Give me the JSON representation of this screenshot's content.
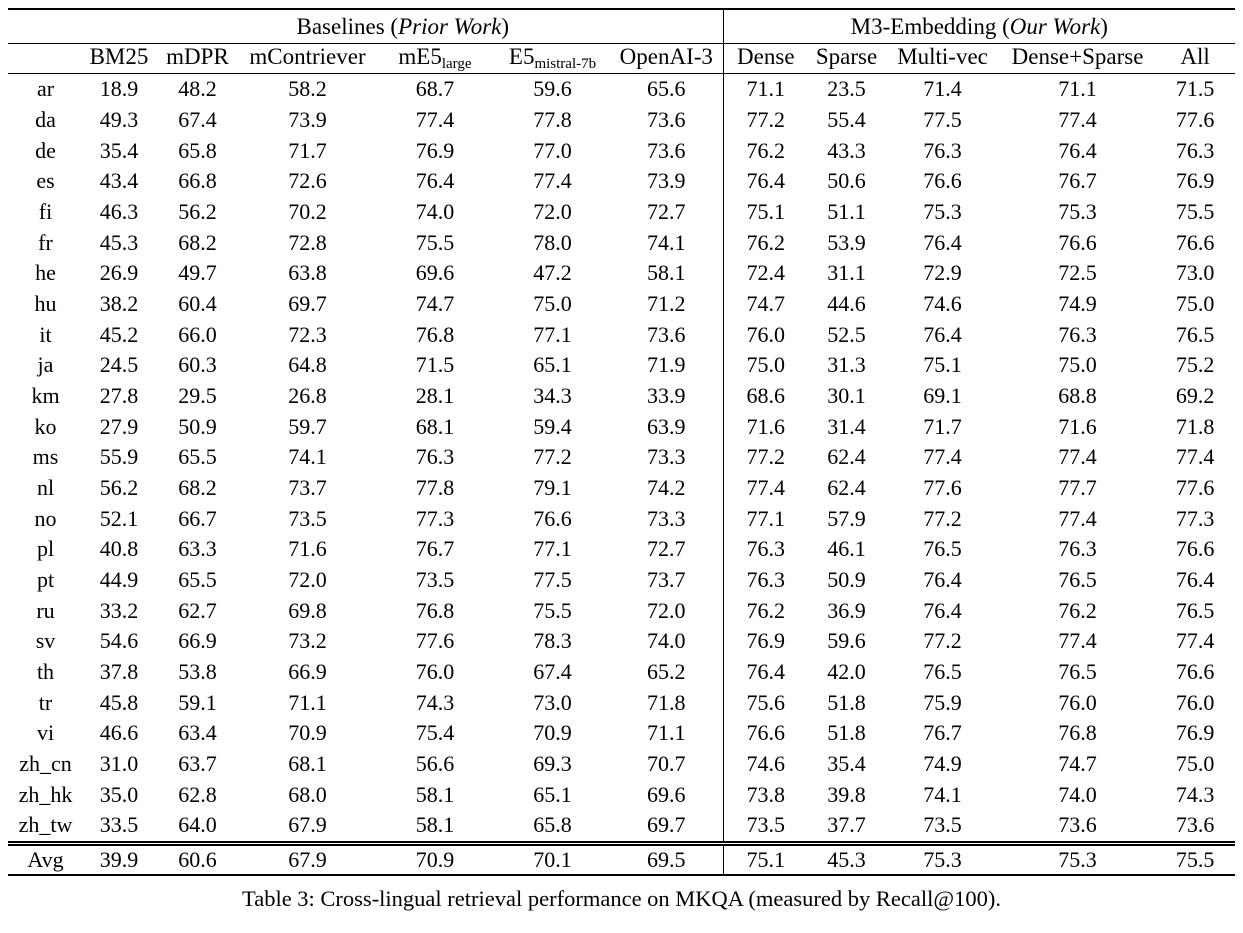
{
  "table": {
    "groups": [
      {
        "prefix": "Baselines (",
        "italic": "Prior Work",
        "suffix": ")"
      },
      {
        "prefix": "M3-Embedding (",
        "italic": "Our Work",
        "suffix": ")"
      }
    ],
    "columns": [
      {
        "main": "BM25",
        "sub": ""
      },
      {
        "main": "mDPR",
        "sub": ""
      },
      {
        "main": "mContriever",
        "sub": ""
      },
      {
        "main": "mE5",
        "sub": "large"
      },
      {
        "main": "E5",
        "sub": "mistral-7b"
      },
      {
        "main": "OpenAI-3",
        "sub": ""
      },
      {
        "main": "Dense",
        "sub": ""
      },
      {
        "main": "Sparse",
        "sub": ""
      },
      {
        "main": "Multi-vec",
        "sub": ""
      },
      {
        "main": "Dense+Sparse",
        "sub": ""
      },
      {
        "main": "All",
        "sub": ""
      }
    ],
    "rows": [
      {
        "lang": "ar",
        "values": [
          "18.9",
          "48.2",
          "58.2",
          "68.7",
          "59.6",
          "65.6",
          "71.1",
          "23.5",
          "71.4",
          "71.1",
          "71.5"
        ],
        "bold": [
          10
        ]
      },
      {
        "lang": "da",
        "values": [
          "49.3",
          "67.4",
          "73.9",
          "77.4",
          "77.8",
          "73.6",
          "77.2",
          "55.4",
          "77.5",
          "77.4",
          "77.6"
        ],
        "bold": [
          4
        ]
      },
      {
        "lang": "de",
        "values": [
          "35.4",
          "65.8",
          "71.7",
          "76.9",
          "77.0",
          "73.6",
          "76.2",
          "43.3",
          "76.3",
          "76.4",
          "76.3"
        ],
        "bold": [
          4
        ]
      },
      {
        "lang": "es",
        "values": [
          "43.4",
          "66.8",
          "72.6",
          "76.4",
          "77.4",
          "73.9",
          "76.4",
          "50.6",
          "76.6",
          "76.7",
          "76.9"
        ],
        "bold": [
          4
        ]
      },
      {
        "lang": "fi",
        "values": [
          "46.3",
          "56.2",
          "70.2",
          "74.0",
          "72.0",
          "72.7",
          "75.1",
          "51.1",
          "75.3",
          "75.3",
          "75.5"
        ],
        "bold": [
          10
        ]
      },
      {
        "lang": "fr",
        "values": [
          "45.3",
          "68.2",
          "72.8",
          "75.5",
          "78.0",
          "74.1",
          "76.2",
          "53.9",
          "76.4",
          "76.6",
          "76.6"
        ],
        "bold": [
          4
        ]
      },
      {
        "lang": "he",
        "values": [
          "26.9",
          "49.7",
          "63.8",
          "69.6",
          "47.2",
          "58.1",
          "72.4",
          "31.1",
          "72.9",
          "72.5",
          "73.0"
        ],
        "bold": [
          10
        ]
      },
      {
        "lang": "hu",
        "values": [
          "38.2",
          "60.4",
          "69.7",
          "74.7",
          "75.0",
          "71.2",
          "74.7",
          "44.6",
          "74.6",
          "74.9",
          "75.0"
        ],
        "bold": [
          4,
          10
        ]
      },
      {
        "lang": "it",
        "values": [
          "45.2",
          "66.0",
          "72.3",
          "76.8",
          "77.1",
          "73.6",
          "76.0",
          "52.5",
          "76.4",
          "76.3",
          "76.5"
        ],
        "bold": [
          4
        ]
      },
      {
        "lang": "ja",
        "values": [
          "24.5",
          "60.3",
          "64.8",
          "71.5",
          "65.1",
          "71.9",
          "75.0",
          "31.3",
          "75.1",
          "75.0",
          "75.2"
        ],
        "bold": [
          10
        ]
      },
      {
        "lang": "km",
        "values": [
          "27.8",
          "29.5",
          "26.8",
          "28.1",
          "34.3",
          "33.9",
          "68.6",
          "30.1",
          "69.1",
          "68.8",
          "69.2"
        ],
        "bold": [
          10
        ]
      },
      {
        "lang": "ko",
        "values": [
          "27.9",
          "50.9",
          "59.7",
          "68.1",
          "59.4",
          "63.9",
          "71.6",
          "31.4",
          "71.7",
          "71.6",
          "71.8"
        ],
        "bold": [
          10
        ]
      },
      {
        "lang": "ms",
        "values": [
          "55.9",
          "65.5",
          "74.1",
          "76.3",
          "77.2",
          "73.3",
          "77.2",
          "62.4",
          "77.4",
          "77.4",
          "77.4"
        ],
        "bold": [
          8,
          9,
          10
        ]
      },
      {
        "lang": "nl",
        "values": [
          "56.2",
          "68.2",
          "73.7",
          "77.8",
          "79.1",
          "74.2",
          "77.4",
          "62.4",
          "77.6",
          "77.7",
          "77.6"
        ],
        "bold": [
          4
        ]
      },
      {
        "lang": "no",
        "values": [
          "52.1",
          "66.7",
          "73.5",
          "77.3",
          "76.6",
          "73.3",
          "77.1",
          "57.9",
          "77.2",
          "77.4",
          "77.3"
        ],
        "bold": [
          9
        ]
      },
      {
        "lang": "pl",
        "values": [
          "40.8",
          "63.3",
          "71.6",
          "76.7",
          "77.1",
          "72.7",
          "76.3",
          "46.1",
          "76.5",
          "76.3",
          "76.6"
        ],
        "bold": [
          4
        ]
      },
      {
        "lang": "pt",
        "values": [
          "44.9",
          "65.5",
          "72.0",
          "73.5",
          "77.5",
          "73.7",
          "76.3",
          "50.9",
          "76.4",
          "76.5",
          "76.4"
        ],
        "bold": [
          4
        ]
      },
      {
        "lang": "ru",
        "values": [
          "33.2",
          "62.7",
          "69.8",
          "76.8",
          "75.5",
          "72.0",
          "76.2",
          "36.9",
          "76.4",
          "76.2",
          "76.5"
        ],
        "bold": [
          3
        ]
      },
      {
        "lang": "sv",
        "values": [
          "54.6",
          "66.9",
          "73.2",
          "77.6",
          "78.3",
          "74.0",
          "76.9",
          "59.6",
          "77.2",
          "77.4",
          "77.4"
        ],
        "bold": [
          4
        ]
      },
      {
        "lang": "th",
        "values": [
          "37.8",
          "53.8",
          "66.9",
          "76.0",
          "67.4",
          "65.2",
          "76.4",
          "42.0",
          "76.5",
          "76.5",
          "76.6"
        ],
        "bold": [
          10
        ]
      },
      {
        "lang": "tr",
        "values": [
          "45.8",
          "59.1",
          "71.1",
          "74.3",
          "73.0",
          "71.8",
          "75.6",
          "51.8",
          "75.9",
          "76.0",
          "76.0"
        ],
        "bold": [
          9,
          10
        ]
      },
      {
        "lang": "vi",
        "values": [
          "46.6",
          "63.4",
          "70.9",
          "75.4",
          "70.9",
          "71.1",
          "76.6",
          "51.8",
          "76.7",
          "76.8",
          "76.9"
        ],
        "bold": [
          10
        ]
      },
      {
        "lang": "zh_cn",
        "values": [
          "31.0",
          "63.7",
          "68.1",
          "56.6",
          "69.3",
          "70.7",
          "74.6",
          "35.4",
          "74.9",
          "74.7",
          "75.0"
        ],
        "bold": [
          10
        ]
      },
      {
        "lang": "zh_hk",
        "values": [
          "35.0",
          "62.8",
          "68.0",
          "58.1",
          "65.1",
          "69.6",
          "73.8",
          "39.8",
          "74.1",
          "74.0",
          "74.3"
        ],
        "bold": [
          10
        ]
      },
      {
        "lang": "zh_tw",
        "values": [
          "33.5",
          "64.0",
          "67.9",
          "58.1",
          "65.8",
          "69.7",
          "73.5",
          "37.7",
          "73.5",
          "73.6",
          "73.6"
        ],
        "bold": [
          9,
          10
        ]
      }
    ],
    "avg_row": {
      "lang": "Avg",
      "values": [
        "39.9",
        "60.6",
        "67.9",
        "70.9",
        "70.1",
        "69.5",
        "75.1",
        "45.3",
        "75.3",
        "75.3",
        "75.5"
      ],
      "bold": [
        10
      ]
    }
  },
  "caption": "Table 3: Cross-lingual retrieval performance on MKQA (measured by Recall@100)."
}
